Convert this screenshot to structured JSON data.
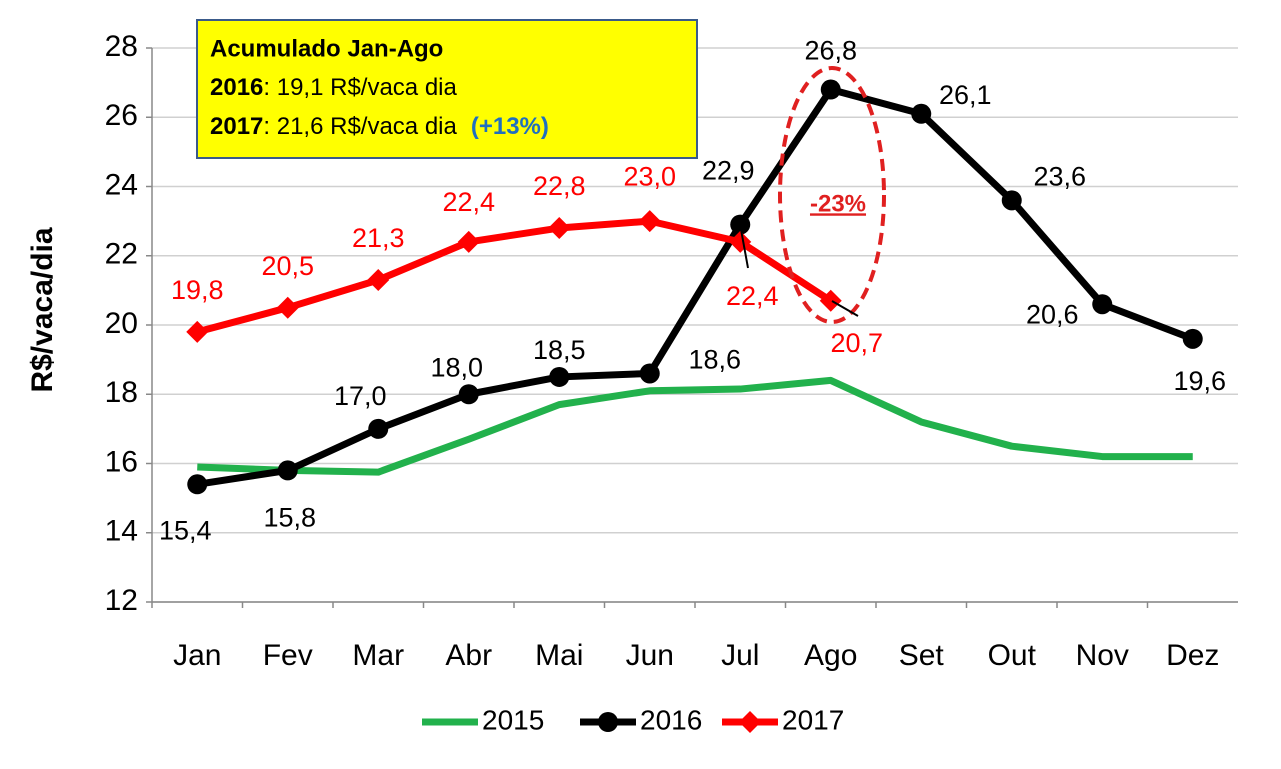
{
  "chart_data": {
    "type": "line",
    "y_label": "R$/vaca/dia",
    "categories": [
      "Jan",
      "Fev",
      "Mar",
      "Abr",
      "Mai",
      "Jun",
      "Jul",
      "Ago",
      "Set",
      "Out",
      "Nov",
      "Dez"
    ],
    "ylim": [
      12,
      28
    ],
    "yticks": [
      12,
      14,
      16,
      18,
      20,
      22,
      24,
      26,
      28
    ],
    "grid": true,
    "legend": "bottom",
    "series": [
      {
        "name": "2015",
        "color": "#22b14c",
        "marker": "none",
        "values": [
          15.9,
          15.8,
          15.75,
          16.7,
          17.7,
          18.1,
          18.15,
          18.4,
          17.2,
          16.5,
          16.2,
          16.2
        ]
      },
      {
        "name": "2016",
        "color": "#000000",
        "marker": "circle",
        "values": [
          15.4,
          15.8,
          17.0,
          18.0,
          18.5,
          18.6,
          22.9,
          26.8,
          26.1,
          23.6,
          20.6,
          19.6
        ],
        "value_labels": [
          "15,4",
          "15,8",
          "17,0",
          "18,0",
          "18,5",
          "18,6",
          "22,9",
          "26,8",
          "26,1",
          "23,6",
          "20,6",
          "19,6"
        ]
      },
      {
        "name": "2017",
        "color": "#ff0000",
        "marker": "diamond",
        "values": [
          19.8,
          20.5,
          21.3,
          22.4,
          22.8,
          23.0,
          22.4,
          20.7,
          null,
          null,
          null,
          null
        ],
        "value_labels": [
          "19,8",
          "20,5",
          "21,3",
          "22,4",
          "22,8",
          "23,0",
          "22,4",
          "20,7",
          null,
          null,
          null,
          null
        ]
      }
    ],
    "box": {
      "title": "Acumulado Jan-Ago",
      "lines": [
        {
          "label": "2016",
          "text": ": 19,1 R$/vaca dia"
        },
        {
          "label": "2017",
          "text": ": 21,6 R$/vaca dia",
          "extra": "(+13%)"
        }
      ]
    },
    "annotation": "-23%"
  }
}
